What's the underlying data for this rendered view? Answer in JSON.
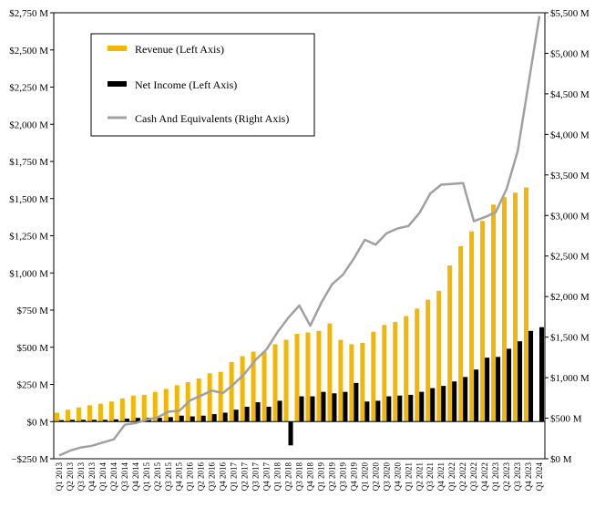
{
  "chart_data": {
    "type": "bar",
    "title": "",
    "xlabel": "",
    "ylabel_left": "",
    "ylabel_right": "",
    "categories": [
      "Q1 2013",
      "Q2 2013",
      "Q3 2013",
      "Q4 2013",
      "Q1 2014",
      "Q2 2014",
      "Q3 2014",
      "Q4 2014",
      "Q1 2015",
      "Q2 2015",
      "Q3 2015",
      "Q4 2015",
      "Q1 2016",
      "Q2 2016",
      "Q3 2016",
      "Q4 2016",
      "Q1 2017",
      "Q2 2017",
      "Q3 2017",
      "Q4 2017",
      "Q1 2018",
      "Q2 2018",
      "Q3 2018",
      "Q4 2018",
      "Q1 2019",
      "Q2 2019",
      "Q3 2019",
      "Q4 2019",
      "Q1 2020",
      "Q2 2020",
      "Q3 2020",
      "Q4 2020",
      "Q1 2021",
      "Q2 2021",
      "Q3 2021",
      "Q4 2021",
      "Q1 2022",
      "Q2 2022",
      "Q3 2022",
      "Q4 2022",
      "Q1 2023",
      "Q2 2023",
      "Q3 2023",
      "Q4 2023",
      "Q1 2024"
    ],
    "left_axis": {
      "ylim": [
        -250,
        2750
      ],
      "ticks": [
        -250,
        0,
        250,
        500,
        750,
        1000,
        1250,
        1500,
        1750,
        2000,
        2250,
        2500,
        2750
      ],
      "tick_labels": [
        "−$250 M",
        "$0 M",
        "$250 M",
        "$500 M",
        "$750 M",
        "$1,000 M",
        "$1,250 M",
        "$1,500 M",
        "$1,750 M",
        "$2,000 M",
        "$2,250 M",
        "$2,500 M",
        "$2,750 M"
      ]
    },
    "right_axis": {
      "ylim": [
        0,
        5500
      ],
      "ticks": [
        0,
        500,
        1000,
        1500,
        2000,
        2500,
        3000,
        3500,
        4000,
        4500,
        5000,
        5500
      ],
      "tick_labels": [
        "$0 M",
        "$500 M",
        "$1,000 M",
        "$1,500 M",
        "$2,000 M",
        "$2,500 M",
        "$3,000 M",
        "$3,500 M",
        "$4,000 M",
        "$4,500 M",
        "$5,000 M",
        "$5,500 M"
      ]
    },
    "series": [
      {
        "name": "Revenue (Left Axis)",
        "axis": "left",
        "kind": "bar",
        "color": "#F2B705",
        "values": [
          60,
          80,
          95,
          110,
          120,
          135,
          155,
          175,
          180,
          200,
          220,
          245,
          265,
          290,
          325,
          335,
          400,
          440,
          470,
          470,
          520,
          550,
          590,
          600,
          610,
          660,
          550,
          520,
          530,
          605,
          650,
          670,
          710,
          760,
          820,
          880,
          1050,
          1180,
          1280,
          1350,
          1460,
          1510,
          1540,
          1575,
          0
        ]
      },
      {
        "name": "Net Income (Left Axis)",
        "axis": "left",
        "kind": "bar",
        "color": "#000000",
        "values": [
          10,
          12,
          12,
          12,
          12,
          15,
          20,
          25,
          25,
          25,
          30,
          40,
          35,
          40,
          50,
          60,
          80,
          100,
          130,
          100,
          140,
          -160,
          170,
          170,
          200,
          190,
          200,
          260,
          135,
          140,
          170,
          175,
          180,
          200,
          225,
          240,
          270,
          300,
          350,
          430,
          435,
          490,
          540,
          610,
          635
        ]
      },
      {
        "name": "Cash And Equivalents (Right Axis)",
        "axis": "right",
        "kind": "line",
        "color": "#A0A0A0",
        "values": [
          40,
          100,
          140,
          160,
          200,
          240,
          420,
          440,
          480,
          510,
          580,
          590,
          720,
          780,
          840,
          810,
          920,
          1050,
          1220,
          1350,
          1560,
          1740,
          1890,
          1640,
          1920,
          2150,
          2270,
          2470,
          2700,
          2640,
          2780,
          2840,
          2870,
          3030,
          3270,
          3380,
          3390,
          3400,
          2930,
          2980,
          3040,
          3330,
          3790,
          4620,
          5460
        ]
      }
    ],
    "legend": {
      "position": "top-left",
      "items": [
        "Revenue (Left Axis)",
        "Net Income (Left Axis)",
        "Cash And Equivalents (Right Axis)"
      ]
    },
    "grid": false
  }
}
